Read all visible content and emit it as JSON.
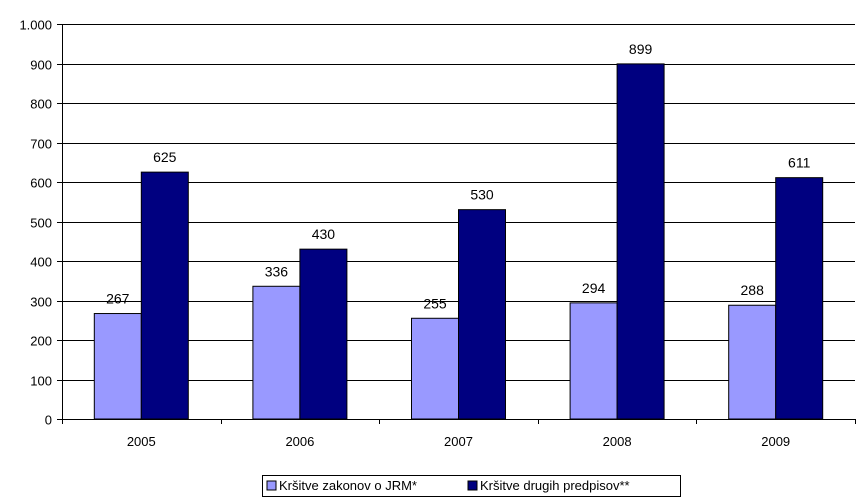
{
  "chart_data": {
    "type": "bar",
    "categories": [
      "2005",
      "2006",
      "2007",
      "2008",
      "2009"
    ],
    "series": [
      {
        "name": "Kršitve zakonov o JRM*",
        "values": [
          267,
          336,
          255,
          294,
          288
        ],
        "color": "#9999ff"
      },
      {
        "name": "Kršitve drugih predpisov**",
        "values": [
          625,
          430,
          530,
          899,
          611
        ],
        "color": "#000080"
      }
    ],
    "data_labels": [
      [
        "267",
        "336",
        "255",
        "294",
        "288"
      ],
      [
        "625",
        "430",
        "530",
        "899",
        "611"
      ]
    ],
    "yticks": [
      0,
      100,
      200,
      300,
      400,
      500,
      600,
      700,
      800,
      900,
      1000
    ],
    "ytick_labels": [
      "0",
      "100",
      "200",
      "300",
      "400",
      "500",
      "600",
      "700",
      "800",
      "900",
      "1.000"
    ],
    "ylim": [
      0,
      1000
    ],
    "grid": true,
    "legend_position": "bottom-center",
    "title": "",
    "xlabel": "",
    "ylabel": ""
  }
}
